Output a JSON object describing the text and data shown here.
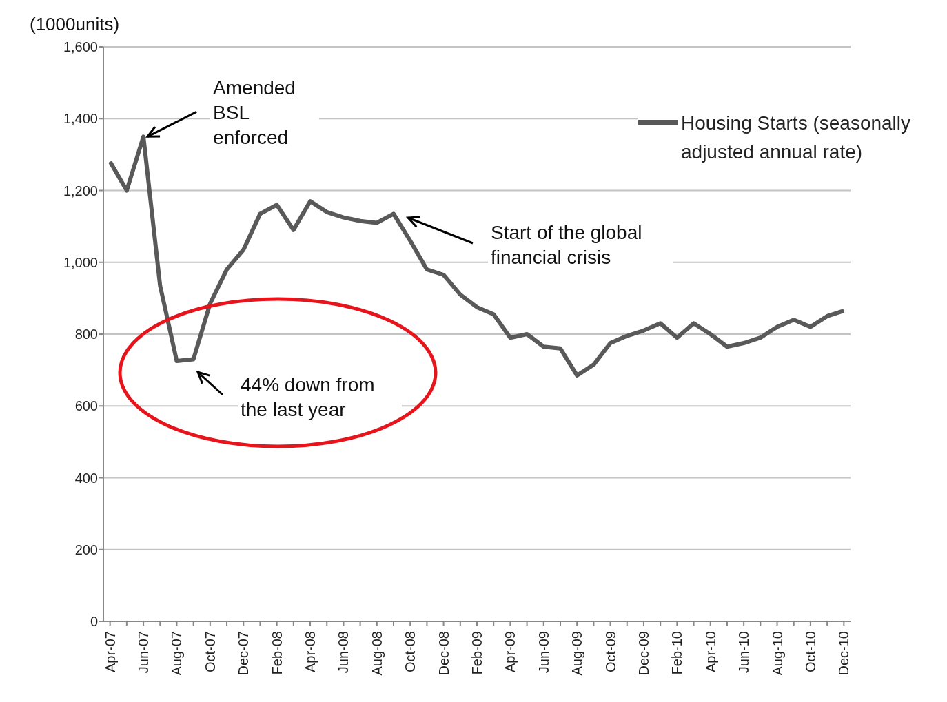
{
  "chart_data": {
    "type": "line",
    "ylabel": "(1000units)",
    "categories": [
      "Apr-07",
      null,
      "Jun-07",
      null,
      "Aug-07",
      null,
      "Oct-07",
      null,
      "Dec-07",
      null,
      "Feb-08",
      null,
      "Apr-08",
      null,
      "Jun-08",
      null,
      "Aug-08",
      null,
      "Oct-08",
      null,
      "Dec-08",
      null,
      "Feb-09",
      null,
      "Apr-09",
      null,
      "Jun-09",
      null,
      "Aug-09",
      null,
      "Oct-09",
      null,
      "Dec-09",
      null,
      "Feb-10",
      null,
      "Apr-10",
      null,
      "Jun-10",
      null,
      "Aug-10",
      null,
      "Oct-10",
      null,
      "Dec-10"
    ],
    "series": [
      {
        "name": "Housing Starts (seasonally adjusted annual rate)",
        "color": "#595959",
        "values": [
          1280,
          1200,
          1350,
          935,
          725,
          730,
          885,
          980,
          1035,
          1135,
          1160,
          1090,
          1170,
          1140,
          1125,
          1115,
          1110,
          1135,
          1060,
          980,
          965,
          910,
          875,
          855,
          790,
          800,
          765,
          760,
          685,
          715,
          775,
          795,
          810,
          830,
          790,
          830,
          800,
          765,
          775,
          790,
          820,
          840,
          820,
          850,
          865
        ]
      }
    ],
    "ylim": [
      0,
      1600
    ],
    "yticks": [
      {
        "value": 0,
        "label": "0"
      },
      {
        "value": 200,
        "label": "200"
      },
      {
        "value": 400,
        "label": "400"
      },
      {
        "value": 600,
        "label": "600"
      },
      {
        "value": 800,
        "label": "800"
      },
      {
        "value": 1000,
        "label": "1,000"
      },
      {
        "value": 1200,
        "label": "1,200"
      },
      {
        "value": 1400,
        "label": "1,400"
      },
      {
        "value": 1600,
        "label": "1,600"
      }
    ],
    "grid": "y",
    "legend": "top right",
    "marker": "none",
    "line_style": "solid",
    "annotations": [
      {
        "text": "Amended BSL enforced",
        "x": "Jun-07",
        "y": 1350
      },
      "Start of the global financial crisis",
      "44% down from the last year"
    ]
  }
}
